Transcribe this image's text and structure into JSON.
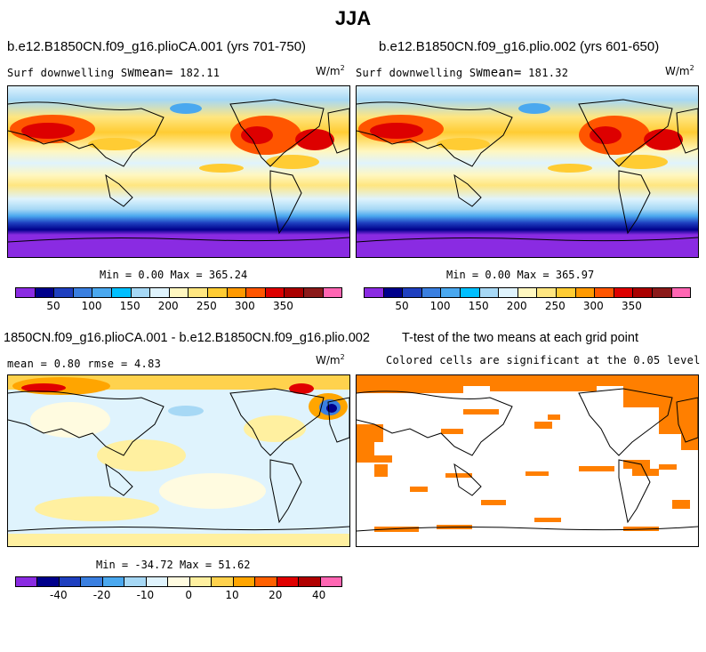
{
  "title": "JJA",
  "panel1": {
    "case": "b.e12.B1850CN.f09_g16.plioCA.001 (yrs 701-750)",
    "variable": "Surf downwelling SW",
    "mean_label": "mean=",
    "mean_value": "182.11",
    "units": "W/m",
    "units_exp": "2",
    "min_label": "Min =",
    "min_value": "0.00",
    "max_label": "Max =",
    "max_value": "365.24"
  },
  "panel2": {
    "case": "b.e12.B1850CN.f09_g16.plio.002 (yrs 601-650)",
    "variable": "Surf downwelling SW",
    "mean_label": "mean=",
    "mean_value": "181.32",
    "units": "W/m",
    "units_exp": "2",
    "min_label": "Min =",
    "min_value": "0.00",
    "max_label": "Max =",
    "max_value": "365.97"
  },
  "panel3": {
    "case": "1850CN.f09_g16.plioCA.001 - b.e12.B1850CN.f09_g16.plio.002",
    "mean_label": "mean =",
    "mean_value": "0.80",
    "rmse_label": "rmse =",
    "rmse_value": "4.83",
    "units": "W/m",
    "units_exp": "2",
    "min_label": "Min =",
    "min_value": "-34.72",
    "max_label": "Max =",
    "max_value": "51.62"
  },
  "panel4": {
    "title": "T-test of the two means at each grid point",
    "subtitle": "Colored cells are significant at the 0.05 level"
  },
  "colorbar_abs": {
    "ticks": [
      "50",
      "100",
      "150",
      "200",
      "250",
      "300",
      "350"
    ],
    "colors": [
      "#8a2be2",
      "#00008b",
      "#1e3fbf",
      "#3a7fe0",
      "#4aa8ef",
      "#00bfff",
      "#a6d8f5",
      "#dff3fd",
      "#fff7c0",
      "#ffe680",
      "#ffcc33",
      "#ff9900",
      "#ff5500",
      "#dd0000",
      "#aa0000",
      "#8b1a1a",
      "#ff66b3"
    ]
  },
  "colorbar_diff": {
    "ticks": [
      "-40",
      "-20",
      "-10",
      "0",
      "10",
      "20",
      "40"
    ],
    "colors": [
      "#8a2be2",
      "#00008b",
      "#1e3fbf",
      "#3a7fe0",
      "#4aa8ef",
      "#a6d8f5",
      "#dff3fd",
      "#fffbe0",
      "#fff0a0",
      "#ffd24d",
      "#ffa500",
      "#ff6000",
      "#e00000",
      "#b00000",
      "#ff66b3"
    ]
  },
  "colors": {
    "significant": "#ff7f00"
  }
}
